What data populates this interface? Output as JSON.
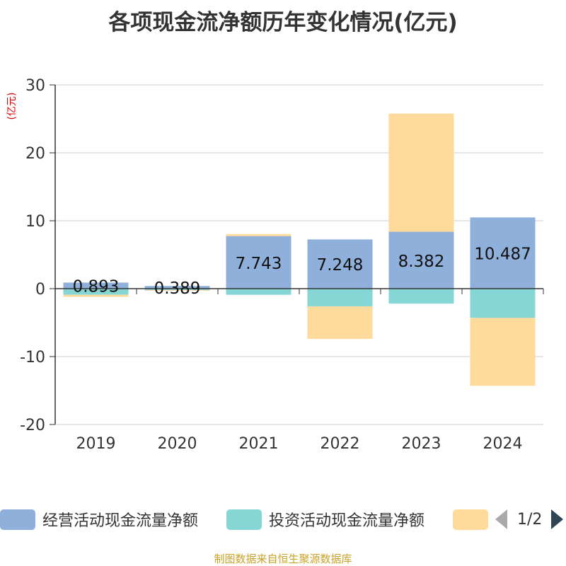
{
  "title": "各项现金流净额历年变化情况(亿元)",
  "unit_label": "(亿元)",
  "source": "制图数据来自恒生聚源数据库",
  "chart_data": {
    "type": "bar",
    "stacked": true,
    "categories": [
      "2019",
      "2020",
      "2021",
      "2022",
      "2023",
      "2024"
    ],
    "ylim": [
      -20,
      30
    ],
    "yticks": [
      30,
      20,
      10,
      0,
      -10,
      -20
    ],
    "series": [
      {
        "name": "经营活动现金流量净额",
        "color": "#8fb0da",
        "values": [
          0.893,
          0.389,
          7.743,
          7.248,
          8.382,
          10.487
        ]
      },
      {
        "name": "投资活动现金流量净额",
        "color": "#86d6d6",
        "values": [
          -0.9,
          -0.2,
          -0.9,
          -2.6,
          -2.2,
          -4.3
        ]
      },
      {
        "name": "",
        "color": "#fedb9b",
        "values": [
          -0.3,
          -0.1,
          0.3,
          -4.8,
          17.4,
          -10.0
        ]
      }
    ],
    "data_labels": [
      "0.893",
      "0.389",
      "7.743",
      "7.248",
      "8.382",
      "10.487"
    ],
    "grid": true
  },
  "legend": {
    "items": [
      {
        "label": "经营活动现金流量净额",
        "color": "#8fb0da"
      },
      {
        "label": "投资活动现金流量净额",
        "color": "#86d6d6"
      },
      {
        "label": "",
        "color": "#fedb9b"
      }
    ],
    "pager": "1/2"
  }
}
